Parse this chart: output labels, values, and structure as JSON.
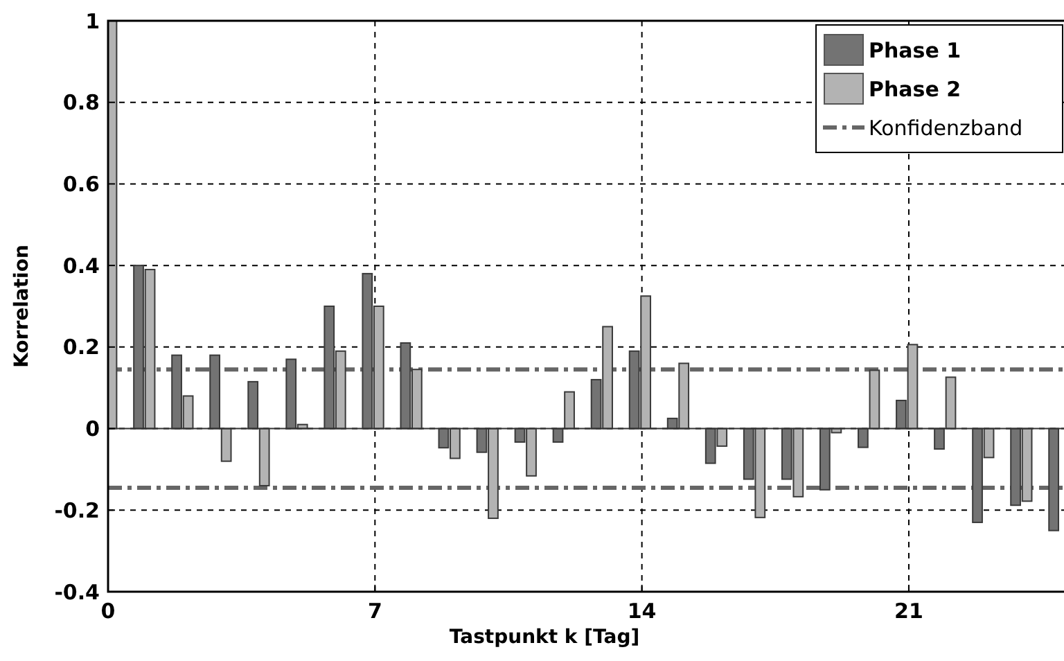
{
  "chart_data": {
    "type": "bar",
    "xlabel": "Tastpunkt k [Tag]",
    "ylabel": "Korrelation",
    "x": [
      0,
      1,
      2,
      3,
      4,
      5,
      6,
      7,
      8,
      9,
      10,
      11,
      12,
      13,
      14,
      15,
      16,
      17,
      18,
      19,
      20,
      21,
      22,
      23,
      24,
      25
    ],
    "series": [
      {
        "name": "Phase 1",
        "color": "#737373",
        "values": [
          null,
          0.4,
          0.18,
          0.18,
          0.115,
          0.17,
          0.3,
          0.38,
          0.21,
          -0.047,
          -0.058,
          -0.033,
          -0.033,
          0.12,
          0.19,
          0.025,
          -0.085,
          -0.124,
          -0.124,
          -0.15,
          -0.046,
          0.069,
          -0.05,
          -0.23,
          -0.188,
          -0.25
        ]
      },
      {
        "name": "Phase 2",
        "color": "#b3b3b3",
        "values": [
          1,
          0.39,
          0.08,
          -0.08,
          -0.14,
          0.01,
          0.19,
          0.3,
          0.145,
          -0.073,
          -0.22,
          -0.116,
          0.09,
          0.25,
          0.325,
          0.16,
          -0.043,
          -0.218,
          -0.167,
          -0.01,
          0.143,
          0.206,
          0.126,
          -0.071,
          -0.178,
          null
        ]
      }
    ],
    "xlim": [
      0,
      25.07
    ],
    "xticks": [
      0,
      7,
      14,
      21
    ],
    "ylim": [
      -0.4,
      1
    ],
    "yticks": [
      -0.4,
      -0.2,
      0,
      0.2,
      0.4,
      0.6,
      0.8,
      1
    ],
    "ref_lines": [
      {
        "axis": "y",
        "value": 0.145,
        "label": "Konfidenzband",
        "color": "#666666",
        "line_style": "dashed"
      },
      {
        "axis": "y",
        "value": -0.145,
        "color": "#666666",
        "line_style": "dashed"
      }
    ],
    "grid": true,
    "legend": "top right"
  }
}
